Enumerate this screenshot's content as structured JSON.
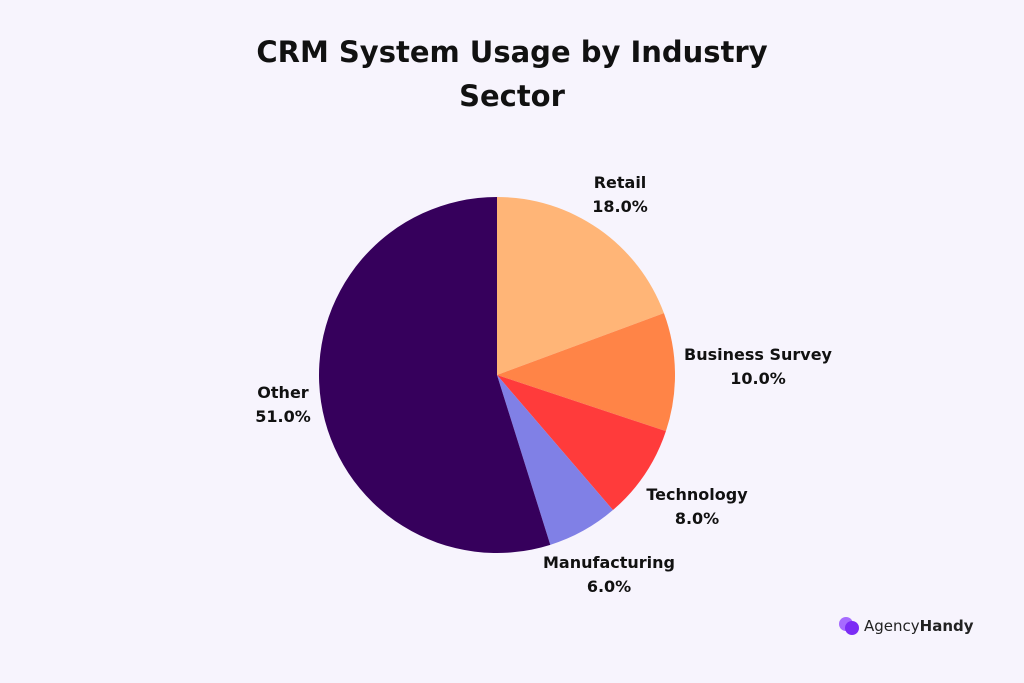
{
  "chart_data": {
    "type": "pie",
    "title": "CRM System Usage by Industry Sector",
    "title_lines": [
      "CRM System Usage by Industry",
      "Sector"
    ],
    "start": "top",
    "direction": "clockwise",
    "slices": [
      {
        "label": "Retail",
        "value": 18.0,
        "pct_label": "18.0%",
        "color": "#ffb577"
      },
      {
        "label": "Business Survey",
        "value": 10.0,
        "pct_label": "10.0%",
        "color": "#ff8447"
      },
      {
        "label": "Technology",
        "value": 8.0,
        "pct_label": "8.0%",
        "color": "#ff3b3b"
      },
      {
        "label": "Manufacturing",
        "value": 6.0,
        "pct_label": "6.0%",
        "color": "#8080e6"
      },
      {
        "label": "Other",
        "value": 51.0,
        "pct_label": "51.0%",
        "color": "#36005c"
      }
    ]
  },
  "branding": {
    "logo_text_light": "Agency",
    "logo_text_bold": "Handy",
    "logo_color": "#8b3dff"
  }
}
